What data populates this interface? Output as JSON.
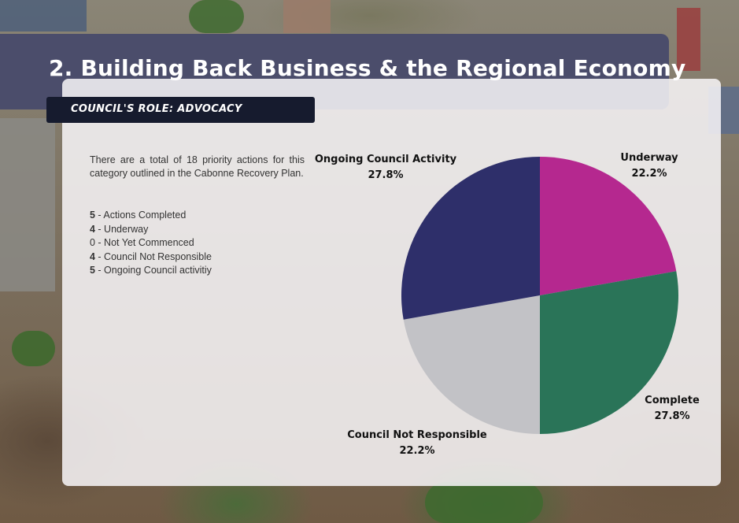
{
  "header": {
    "title": "2. Building Back Business & the Regional Economy",
    "role": "COUNCIL'S ROLE: ADVOCACY"
  },
  "intro": "There are a total of 18 priority actions for this category outlined in the Cabonne Recovery Plan.",
  "status_list": [
    {
      "count": "5",
      "label": " - Actions Completed",
      "bold": true
    },
    {
      "count": "4",
      "label": " - Underway",
      "bold": true
    },
    {
      "count": "0",
      "label": " - Not Yet Commenced",
      "bold": false
    },
    {
      "count": "4",
      "label": " - Council Not Responsible",
      "bold": true
    },
    {
      "count": "5",
      "label": " - Ongoing Council activitiy",
      "bold": true
    }
  ],
  "colors": {
    "underway": "#b5288f",
    "complete": "#2a7458",
    "council_not_responsible": "#c2c2c6",
    "ongoing": "#2e2f6a",
    "header_bar": "#4b4d6b",
    "role_tag": "#161b2e"
  },
  "chart_data": {
    "type": "pie",
    "title": "",
    "slices": [
      {
        "name": "Underway",
        "value": 22.2,
        "label": "22.2%",
        "color": "#b5288f"
      },
      {
        "name": "Complete",
        "value": 27.8,
        "label": "27.8%",
        "color": "#2a7458"
      },
      {
        "name": "Council Not Responsible",
        "value": 22.2,
        "label": "22.2%",
        "color": "#c2c2c6"
      },
      {
        "name": "Ongoing Council Activity",
        "value": 27.8,
        "label": "27.8%",
        "color": "#2e2f6a"
      }
    ],
    "start": "top, clockwise",
    "legend": "none"
  }
}
